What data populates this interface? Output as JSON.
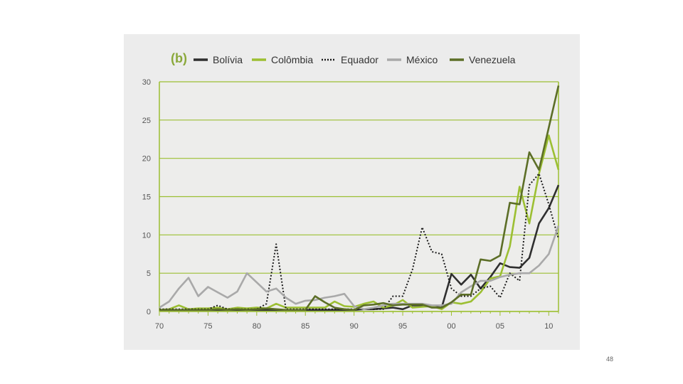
{
  "page": {
    "page_number": "48"
  },
  "chart_data": {
    "type": "line",
    "panel_label": "(b)",
    "title": "",
    "xlabel": "",
    "ylabel": "",
    "xlim": [
      1970,
      2011
    ],
    "ylim": [
      0,
      30
    ],
    "x_ticks": [
      1970,
      1975,
      1980,
      1985,
      1990,
      1995,
      2000,
      2005,
      2010
    ],
    "x_tick_labels": [
      "70",
      "75",
      "80",
      "85",
      "90",
      "95",
      "00",
      "05",
      "10"
    ],
    "y_ticks": [
      0,
      5,
      10,
      15,
      20,
      25,
      30
    ],
    "y_tick_labels": [
      "0",
      "5",
      "10",
      "15",
      "20",
      "25",
      "30"
    ],
    "grid": "horizontal",
    "legend_position": "top",
    "x": [
      1970,
      1971,
      1972,
      1973,
      1974,
      1975,
      1976,
      1977,
      1978,
      1979,
      1980,
      1981,
      1982,
      1983,
      1984,
      1985,
      1986,
      1987,
      1988,
      1989,
      1990,
      1991,
      1992,
      1993,
      1994,
      1995,
      1996,
      1997,
      1998,
      1999,
      2000,
      2001,
      2002,
      2003,
      2004,
      2005,
      2006,
      2007,
      2008,
      2009,
      2010,
      2011
    ],
    "series": [
      {
        "name": "Bolívia",
        "color": "#2f2f2f",
        "dash": "solid",
        "values": [
          0.2,
          0.2,
          0.2,
          0.2,
          0.2,
          0.2,
          0.2,
          0.2,
          0.2,
          0.2,
          0.2,
          0.2,
          0.2,
          0.2,
          0.2,
          0.2,
          0.2,
          0.2,
          0.2,
          0.2,
          0.2,
          0.3,
          0.3,
          0.4,
          0.5,
          0.3,
          0.8,
          0.8,
          0.7,
          0.5,
          4.9,
          3.5,
          4.8,
          3.0,
          4.5,
          6.3,
          5.8,
          5.7,
          7.0,
          11.5,
          13.5,
          16.5
        ]
      },
      {
        "name": "Colômbia",
        "color": "#9cbf32",
        "dash": "solid",
        "values": [
          0.2,
          0.3,
          0.8,
          0.3,
          0.4,
          0.4,
          0.5,
          0.3,
          0.5,
          0.4,
          0.5,
          0.4,
          1.0,
          0.5,
          0.5,
          0.5,
          0.5,
          0.5,
          1.3,
          0.7,
          0.6,
          1.0,
          1.3,
          0.5,
          0.8,
          1.5,
          0.5,
          0.6,
          0.7,
          0.3,
          1.2,
          1.0,
          1.3,
          2.5,
          4.3,
          4.6,
          8.5,
          16.3,
          11.5,
          18.0,
          23.0,
          18.5
        ]
      },
      {
        "name": "Equador",
        "color": "#1a1a1a",
        "dash": "dotted",
        "values": [
          0.3,
          0.3,
          0.3,
          0.3,
          0.3,
          0.3,
          0.8,
          0.3,
          0.3,
          0.3,
          0.3,
          1.0,
          8.8,
          0.3,
          0.3,
          0.3,
          0.3,
          0.3,
          0.3,
          0.3,
          0.3,
          0.3,
          0.3,
          0.3,
          2.0,
          2.0,
          5.5,
          11.0,
          7.8,
          7.5,
          3.0,
          2.0,
          2.0,
          3.0,
          3.3,
          1.8,
          5.0,
          4.0,
          16.5,
          18.0,
          14.0,
          9.5
        ]
      },
      {
        "name": "México",
        "color": "#a9a9a9",
        "dash": "solid",
        "values": [
          0.5,
          1.3,
          3.0,
          4.4,
          2.0,
          3.2,
          2.5,
          1.8,
          2.6,
          5.0,
          3.8,
          2.6,
          3.0,
          1.8,
          1.0,
          1.4,
          1.5,
          1.8,
          2.0,
          2.3,
          0.7,
          0.3,
          0.5,
          0.8,
          1.0,
          1.0,
          1.0,
          1.0,
          0.8,
          0.8,
          1.0,
          2.5,
          3.3,
          4.0,
          4.0,
          4.5,
          4.8,
          5.0,
          5.0,
          6.0,
          7.5,
          11.2
        ]
      },
      {
        "name": "Venezuela",
        "color": "#5c6e27",
        "dash": "solid",
        "values": [
          0.2,
          0.2,
          0.2,
          0.2,
          0.2,
          0.2,
          0.3,
          0.2,
          0.3,
          0.2,
          0.3,
          0.4,
          0.3,
          0.2,
          0.2,
          0.2,
          2.0,
          1.2,
          0.5,
          0.3,
          0.2,
          0.8,
          0.9,
          1.1,
          0.8,
          0.9,
          0.9,
          0.9,
          0.5,
          0.5,
          1.2,
          2.2,
          2.2,
          6.8,
          6.6,
          7.3,
          14.2,
          14.0,
          20.8,
          18.5,
          24.0,
          29.5
        ]
      }
    ]
  }
}
